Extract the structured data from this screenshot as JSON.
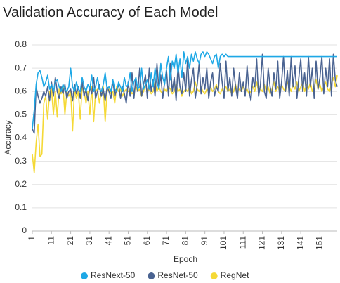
{
  "chart_data": {
    "type": "line",
    "title": "Validation Accuracy of Each Model",
    "x_label": "Epoch",
    "y_label": "Accuracy",
    "x": [
      1,
      2,
      3,
      4,
      5,
      6,
      7,
      8,
      9,
      10,
      11,
      12,
      13,
      14,
      15,
      16,
      17,
      18,
      19,
      20,
      21,
      22,
      23,
      24,
      25,
      26,
      27,
      28,
      29,
      30,
      31,
      32,
      33,
      34,
      35,
      36,
      37,
      38,
      39,
      40,
      41,
      42,
      43,
      44,
      45,
      46,
      47,
      48,
      49,
      50,
      51,
      52,
      53,
      54,
      55,
      56,
      57,
      58,
      59,
      60,
      61,
      62,
      63,
      64,
      65,
      66,
      67,
      68,
      69,
      70,
      71,
      72,
      73,
      74,
      75,
      76,
      77,
      78,
      79,
      80,
      81,
      82,
      83,
      84,
      85,
      86,
      87,
      88,
      89,
      90,
      91,
      92,
      93,
      94,
      95,
      96,
      97,
      98,
      99,
      100,
      101,
      102,
      103,
      104,
      105,
      106,
      107,
      108,
      109,
      110,
      111,
      112,
      113,
      114,
      115,
      116,
      117,
      118,
      119,
      120,
      121,
      122,
      123,
      124,
      125,
      126,
      127,
      128,
      129,
      130,
      131,
      132,
      133,
      134,
      135,
      136,
      137,
      138,
      139,
      140,
      141,
      142,
      143,
      144,
      145,
      146,
      147,
      148,
      149,
      150,
      151,
      152,
      153,
      154,
      155,
      156,
      157,
      158,
      159,
      160
    ],
    "xlim": [
      1,
      160
    ],
    "xticks": [
      1,
      11,
      21,
      31,
      41,
      51,
      61,
      71,
      81,
      91,
      101,
      111,
      121,
      131,
      141,
      151
    ],
    "ylim": [
      0,
      0.8
    ],
    "yticks": [
      0,
      0.1,
      0.2,
      0.3,
      0.4,
      0.5,
      0.6,
      0.7,
      0.8
    ],
    "grid": true,
    "legend": "bottom",
    "series": [
      {
        "name": "ResNext-50",
        "color": "#1ea8e6",
        "values": [
          0.44,
          0.52,
          0.63,
          0.68,
          0.69,
          0.66,
          0.62,
          0.64,
          0.67,
          0.61,
          0.63,
          0.6,
          0.64,
          0.65,
          0.62,
          0.6,
          0.63,
          0.61,
          0.6,
          0.62,
          0.7,
          0.62,
          0.6,
          0.64,
          0.61,
          0.6,
          0.66,
          0.62,
          0.6,
          0.63,
          0.61,
          0.67,
          0.6,
          0.62,
          0.66,
          0.61,
          0.6,
          0.63,
          0.68,
          0.61,
          0.62,
          0.6,
          0.65,
          0.61,
          0.6,
          0.64,
          0.62,
          0.6,
          0.66,
          0.62,
          0.63,
          0.68,
          0.6,
          0.64,
          0.66,
          0.61,
          0.62,
          0.7,
          0.61,
          0.63,
          0.65,
          0.61,
          0.68,
          0.62,
          0.7,
          0.64,
          0.61,
          0.72,
          0.66,
          0.63,
          0.7,
          0.75,
          0.65,
          0.73,
          0.7,
          0.76,
          0.68,
          0.74,
          0.66,
          0.77,
          0.72,
          0.75,
          0.7,
          0.76,
          0.73,
          0.77,
          0.74,
          0.72,
          0.76,
          0.77,
          0.75,
          0.77,
          0.76,
          0.74,
          0.72,
          0.75,
          0.76,
          0.7,
          0.75,
          0.76,
          0.75,
          0.76,
          0.75,
          0.75,
          0.75,
          0.75,
          0.75,
          0.75,
          0.75,
          0.75,
          0.75,
          0.75,
          0.75,
          0.75,
          0.75,
          0.75,
          0.75,
          0.75,
          0.75,
          0.75,
          0.75,
          0.75,
          0.75,
          0.75,
          0.75,
          0.75,
          0.75,
          0.75,
          0.75,
          0.75,
          0.75,
          0.75,
          0.75,
          0.75,
          0.75,
          0.75,
          0.75,
          0.75,
          0.75,
          0.75,
          0.75,
          0.75,
          0.75,
          0.75,
          0.75,
          0.75,
          0.75,
          0.75,
          0.75,
          0.75,
          0.75,
          0.75,
          0.75,
          0.75,
          0.75,
          0.75,
          0.75,
          0.75,
          0.75,
          0.75
        ]
      },
      {
        "name": "ResNet-50",
        "color": "#4a6391",
        "values": [
          0.44,
          0.42,
          0.62,
          0.58,
          0.55,
          0.57,
          0.6,
          0.58,
          0.62,
          0.56,
          0.64,
          0.58,
          0.66,
          0.6,
          0.57,
          0.62,
          0.59,
          0.63,
          0.57,
          0.6,
          0.61,
          0.56,
          0.63,
          0.59,
          0.62,
          0.57,
          0.64,
          0.58,
          0.61,
          0.56,
          0.62,
          0.59,
          0.66,
          0.57,
          0.6,
          0.63,
          0.58,
          0.61,
          0.56,
          0.62,
          0.6,
          0.57,
          0.65,
          0.58,
          0.61,
          0.63,
          0.57,
          0.62,
          0.59,
          0.55,
          0.64,
          0.58,
          0.68,
          0.57,
          0.66,
          0.6,
          0.7,
          0.58,
          0.63,
          0.67,
          0.57,
          0.7,
          0.6,
          0.65,
          0.58,
          0.72,
          0.61,
          0.67,
          0.57,
          0.64,
          0.69,
          0.58,
          0.72,
          0.6,
          0.66,
          0.56,
          0.71,
          0.62,
          0.59,
          0.68,
          0.6,
          0.74,
          0.58,
          0.65,
          0.7,
          0.57,
          0.63,
          0.72,
          0.59,
          0.66,
          0.61,
          0.7,
          0.57,
          0.64,
          0.68,
          0.58,
          0.62,
          0.6,
          0.72,
          0.64,
          0.57,
          0.73,
          0.6,
          0.66,
          0.58,
          0.7,
          0.62,
          0.57,
          0.68,
          0.6,
          0.64,
          0.58,
          0.71,
          0.61,
          0.56,
          0.66,
          0.62,
          0.74,
          0.58,
          0.63,
          0.76,
          0.6,
          0.57,
          0.7,
          0.62,
          0.58,
          0.68,
          0.61,
          0.73,
          0.57,
          0.64,
          0.75,
          0.6,
          0.69,
          0.58,
          0.75,
          0.62,
          0.71,
          0.57,
          0.66,
          0.74,
          0.6,
          0.68,
          0.58,
          0.75,
          0.62,
          0.7,
          0.57,
          0.73,
          0.61,
          0.66,
          0.75,
          0.59,
          0.7,
          0.62,
          0.74,
          0.58,
          0.76,
          0.65,
          0.62
        ]
      },
      {
        "name": "RegNet",
        "color": "#f5d936",
        "values": [
          0.33,
          0.25,
          0.38,
          0.46,
          0.32,
          0.33,
          0.55,
          0.58,
          0.48,
          0.6,
          0.61,
          0.5,
          0.6,
          0.49,
          0.61,
          0.59,
          0.62,
          0.5,
          0.6,
          0.58,
          0.6,
          0.43,
          0.61,
          0.57,
          0.6,
          0.48,
          0.62,
          0.6,
          0.55,
          0.6,
          0.5,
          0.62,
          0.47,
          0.6,
          0.61,
          0.55,
          0.6,
          0.62,
          0.47,
          0.6,
          0.61,
          0.59,
          0.6,
          0.55,
          0.62,
          0.6,
          0.61,
          0.58,
          0.6,
          0.61,
          0.6,
          0.61,
          0.59,
          0.6,
          0.62,
          0.6,
          0.61,
          0.58,
          0.6,
          0.63,
          0.6,
          0.61,
          0.59,
          0.6,
          0.64,
          0.6,
          0.62,
          0.6,
          0.59,
          0.61,
          0.6,
          0.62,
          0.61,
          0.59,
          0.6,
          0.63,
          0.6,
          0.61,
          0.58,
          0.6,
          0.61,
          0.6,
          0.62,
          0.59,
          0.6,
          0.64,
          0.61,
          0.6,
          0.62,
          0.6,
          0.59,
          0.61,
          0.6,
          0.62,
          0.6,
          0.61,
          0.63,
          0.6,
          0.59,
          0.61,
          0.6,
          0.62,
          0.6,
          0.61,
          0.59,
          0.6,
          0.63,
          0.6,
          0.61,
          0.6,
          0.62,
          0.6,
          0.61,
          0.59,
          0.6,
          0.62,
          0.6,
          0.64,
          0.6,
          0.61,
          0.6,
          0.63,
          0.6,
          0.62,
          0.59,
          0.61,
          0.64,
          0.6,
          0.62,
          0.6,
          0.63,
          0.61,
          0.6,
          0.64,
          0.62,
          0.6,
          0.63,
          0.61,
          0.64,
          0.6,
          0.62,
          0.64,
          0.6,
          0.63,
          0.61,
          0.64,
          0.6,
          0.62,
          0.65,
          0.61,
          0.63,
          0.6,
          0.62,
          0.64,
          0.61,
          0.6,
          0.63,
          0.66,
          0.62,
          0.67
        ]
      }
    ]
  }
}
